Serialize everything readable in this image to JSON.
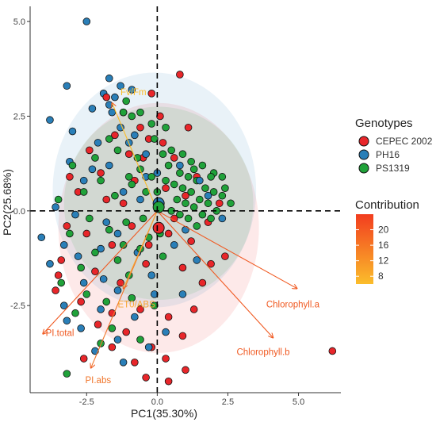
{
  "chart_data": {
    "type": "scatter",
    "subtype": "pca-biplot",
    "title": "",
    "xlabel": "PC1(35.30%)",
    "ylabel": "PC2(25.68%)",
    "xlim": [
      -4.5,
      6.5
    ],
    "ylim": [
      -4.8,
      5.4
    ],
    "xticks": [
      -2.5,
      0.0,
      2.5,
      5.0
    ],
    "xtick_labels": [
      "-2.5",
      "0.0",
      "2.5",
      "5.0"
    ],
    "yticks": [
      -2.5,
      0.0,
      2.5,
      5.0
    ],
    "ytick_labels": [
      "-2.5",
      "0.0",
      "2.5",
      "5.0"
    ],
    "grid": false,
    "zero_lines": "dashed",
    "series": [
      {
        "name": "CEPEC 2002",
        "color": "#e8262a",
        "centroid": [
          0.05,
          -0.45
        ],
        "ellipse": {
          "cx": 0.05,
          "cy": -0.45,
          "rx": 3.55,
          "ry": 3.3
        },
        "points": [
          [
            0.8,
            3.6
          ],
          [
            -1.2,
            2.6
          ],
          [
            -0.6,
            2.2
          ],
          [
            -0.3,
            1.9
          ],
          [
            -1.5,
            2.0
          ],
          [
            -1.0,
            1.5
          ],
          [
            -0.5,
            1.4
          ],
          [
            0.2,
            1.8
          ],
          [
            0.6,
            1.4
          ],
          [
            -2.0,
            1.0
          ],
          [
            -2.8,
            0.5
          ],
          [
            -1.8,
            0.3
          ],
          [
            -0.8,
            0.8
          ],
          [
            0.3,
            0.6
          ],
          [
            1.0,
            0.4
          ],
          [
            1.4,
            0.9
          ],
          [
            -3.2,
            -0.4
          ],
          [
            -2.5,
            -0.6
          ],
          [
            -1.6,
            -0.9
          ],
          [
            -0.9,
            -0.4
          ],
          [
            0.4,
            -0.6
          ],
          [
            1.2,
            -0.8
          ],
          [
            1.8,
            -0.3
          ],
          [
            2.2,
            0.2
          ],
          [
            -3.4,
            -1.3
          ],
          [
            -2.2,
            -1.6
          ],
          [
            -1.3,
            -1.9
          ],
          [
            -0.4,
            -1.4
          ],
          [
            0.9,
            -1.5
          ],
          [
            1.6,
            -1.9
          ],
          [
            2.4,
            -1.2
          ],
          [
            -3.5,
            -1.7
          ],
          [
            -2.7,
            -2.4
          ],
          [
            -1.6,
            -2.7
          ],
          [
            -0.6,
            -2.6
          ],
          [
            0.4,
            -2.8
          ],
          [
            1.3,
            -2.6
          ],
          [
            -3.6,
            -2.1
          ],
          [
            -2.1,
            -3.0
          ],
          [
            -1.1,
            -3.2
          ],
          [
            -0.2,
            -3.6
          ],
          [
            0.9,
            -3.3
          ],
          [
            -1.6,
            -3.6
          ],
          [
            -0.8,
            -4.0
          ],
          [
            -2.6,
            -3.9
          ],
          [
            0.3,
            -3.9
          ],
          [
            -0.4,
            -4.4
          ],
          [
            1.0,
            -4.2
          ],
          [
            0.4,
            -4.5
          ],
          [
            6.2,
            -3.7
          ],
          [
            -0.2,
            3.1
          ],
          [
            -1.8,
            3.0
          ],
          [
            0.1,
            2.5
          ],
          [
            1.1,
            2.2
          ],
          [
            -2.4,
            1.6
          ],
          [
            -3.1,
            0.9
          ],
          [
            -1.2,
            0.2
          ],
          [
            0.6,
            -0.2
          ],
          [
            1.9,
            -1.4
          ],
          [
            -0.3,
            -0.9
          ]
        ]
      },
      {
        "name": "PH16",
        "color": "#2a7fb8",
        "centroid": [
          0.05,
          0.2
        ],
        "ellipse": {
          "cx": -0.1,
          "cy": 0.55,
          "rx": 3.6,
          "ry": 3.1
        },
        "points": [
          [
            -2.5,
            5.0
          ],
          [
            -1.7,
            3.5
          ],
          [
            -1.3,
            3.3
          ],
          [
            -1.9,
            3.1
          ],
          [
            -1.5,
            3.0
          ],
          [
            -0.9,
            3.2
          ],
          [
            -1.7,
            2.8
          ],
          [
            -3.2,
            3.3
          ],
          [
            -1.3,
            2.2
          ],
          [
            -3.0,
            2.1
          ],
          [
            -2.3,
            2.7
          ],
          [
            -3.8,
            2.4
          ],
          [
            -1.6,
            2.6
          ],
          [
            -0.8,
            2.0
          ],
          [
            -2.1,
            1.8
          ],
          [
            -3.1,
            1.3
          ],
          [
            -0.4,
            1.5
          ],
          [
            -1.7,
            1.2
          ],
          [
            -2.6,
            0.8
          ],
          [
            0.0,
            1.0
          ],
          [
            -1.2,
            0.5
          ],
          [
            0.8,
            1.2
          ],
          [
            -2.9,
            -0.1
          ],
          [
            -1.8,
            -0.3
          ],
          [
            -0.6,
            0.3
          ],
          [
            1.5,
            0.8
          ],
          [
            -4.1,
            -0.7
          ],
          [
            -3.3,
            -0.9
          ],
          [
            -2.0,
            -1.0
          ],
          [
            -0.7,
            -1.1
          ],
          [
            1.0,
            -0.5
          ],
          [
            -3.8,
            -1.4
          ],
          [
            -2.6,
            -1.9
          ],
          [
            -1.4,
            -2.1
          ],
          [
            -0.2,
            -1.7
          ],
          [
            1.4,
            -1.3
          ],
          [
            -3.3,
            -2.5
          ],
          [
            -2.0,
            -2.6
          ],
          [
            -0.8,
            -2.8
          ],
          [
            0.3,
            -3.2
          ],
          [
            -2.7,
            -3.1
          ],
          [
            -1.4,
            -3.4
          ],
          [
            -0.3,
            -3.6
          ],
          [
            -1.2,
            -4.0
          ],
          [
            -3.2,
            -2.9
          ],
          [
            -2.2,
            -3.7
          ],
          [
            0.6,
            -0.9
          ],
          [
            -0.4,
            0.9
          ],
          [
            1.8,
            0.4
          ],
          [
            2.3,
            -0.2
          ],
          [
            -1.0,
            1.8
          ],
          [
            -2.3,
            1.1
          ],
          [
            -1.4,
            -0.6
          ],
          [
            -0.1,
            -2.2
          ],
          [
            0.9,
            -2.2
          ],
          [
            -3.6,
            0.1
          ],
          [
            -2.8,
            -1.2
          ],
          [
            -1.9,
            -1.8
          ]
        ]
      },
      {
        "name": "PS1319",
        "color": "#20a23a",
        "centroid": [
          0.05,
          0.1
        ],
        "ellipse": {
          "cx": 0.05,
          "cy": 0.2,
          "rx": 3.35,
          "ry": 2.55
        },
        "points": [
          [
            -1.1,
            2.9
          ],
          [
            -1.2,
            2.6
          ],
          [
            -0.9,
            2.5
          ],
          [
            -0.6,
            2.6
          ],
          [
            -0.2,
            2.3
          ],
          [
            0.3,
            2.2
          ],
          [
            -0.1,
            1.9
          ],
          [
            -1.7,
            1.9
          ],
          [
            -2.2,
            1.4
          ],
          [
            -1.4,
            1.6
          ],
          [
            -0.7,
            1.4
          ],
          [
            0.2,
            1.5
          ],
          [
            0.5,
            1.6
          ],
          [
            0.9,
            1.5
          ],
          [
            1.2,
            1.3
          ],
          [
            1.6,
            1.2
          ],
          [
            2.0,
            1.0
          ],
          [
            2.3,
            0.9
          ],
          [
            0.4,
            1.2
          ],
          [
            0.8,
            1.0
          ],
          [
            1.1,
            0.9
          ],
          [
            1.4,
            0.8
          ],
          [
            1.7,
            0.6
          ],
          [
            2.0,
            0.5
          ],
          [
            2.3,
            0.4
          ],
          [
            2.6,
            0.2
          ],
          [
            0.6,
            0.7
          ],
          [
            0.9,
            0.6
          ],
          [
            1.2,
            0.5
          ],
          [
            1.5,
            0.3
          ],
          [
            1.8,
            0.2
          ],
          [
            2.1,
            0.0
          ],
          [
            0.7,
            0.3
          ],
          [
            1.0,
            0.2
          ],
          [
            1.3,
            0.1
          ],
          [
            1.6,
            -0.1
          ],
          [
            1.9,
            -0.2
          ],
          [
            0.5,
            0.0
          ],
          [
            0.8,
            -0.1
          ],
          [
            1.1,
            -0.2
          ],
          [
            1.4,
            -0.4
          ],
          [
            -3.0,
            1.2
          ],
          [
            -2.6,
            0.5
          ],
          [
            -2.0,
            0.8
          ],
          [
            -1.5,
            0.4
          ],
          [
            -0.9,
            0.7
          ],
          [
            -0.4,
            0.5
          ],
          [
            -3.5,
            0.3
          ],
          [
            -2.4,
            -0.2
          ],
          [
            -1.7,
            -0.5
          ],
          [
            -1.1,
            -0.3
          ],
          [
            -0.5,
            -0.2
          ],
          [
            -3.1,
            -0.6
          ],
          [
            -2.2,
            -1.1
          ],
          [
            -1.4,
            -1.3
          ],
          [
            -0.6,
            -1.0
          ],
          [
            0.2,
            -1.2
          ],
          [
            -3.4,
            -1.9
          ],
          [
            -2.5,
            -2.2
          ],
          [
            -1.8,
            -2.4
          ],
          [
            -0.9,
            -2.3
          ],
          [
            -0.1,
            -2.5
          ],
          [
            -2.9,
            -2.7
          ],
          [
            -1.6,
            -3.1
          ],
          [
            -0.6,
            -3.4
          ],
          [
            -2.0,
            -3.5
          ],
          [
            -3.2,
            -4.3
          ],
          [
            0.0,
            0.5
          ],
          [
            -0.2,
            0.9
          ],
          [
            0.3,
            0.8
          ],
          [
            -0.6,
            1.1
          ],
          [
            -1.0,
            0.9
          ],
          [
            1.9,
            0.9
          ],
          [
            2.4,
            0.6
          ],
          [
            1.3,
            1.1
          ],
          [
            0.1,
            -0.6
          ],
          [
            -0.3,
            -0.7
          ],
          [
            -1.2,
            -0.9
          ],
          [
            -2.7,
            -1.5
          ],
          [
            -1.0,
            -1.7
          ]
        ]
      }
    ],
    "loadings": [
      {
        "label": "Chlorophyll.a",
        "end": [
          4.95,
          -2.05
        ],
        "label_pos": [
          4.8,
          -2.55
        ],
        "color": "#f05a22"
      },
      {
        "label": "Chlorophyll.b",
        "end": [
          4.1,
          -3.35
        ],
        "label_pos": [
          3.75,
          -3.8
        ],
        "color": "#f05a22"
      },
      {
        "label": "PI.total",
        "end": [
          -4.05,
          -3.25
        ],
        "label_pos": [
          -3.95,
          -3.3
        ],
        "color": "#f05a22"
      },
      {
        "label": "PI.abs",
        "end": [
          -2.35,
          -4.15
        ],
        "label_pos": [
          -2.55,
          -4.55
        ],
        "color": "#f0752a"
      },
      {
        "label": "ET0/ABS",
        "end": [
          -1.2,
          -2.05
        ],
        "label_pos": [
          -1.4,
          -2.55
        ],
        "color": "#f8a632"
      },
      {
        "label": "Fv/Fm",
        "end": [
          -1.6,
          2.85
        ],
        "label_pos": [
          -1.3,
          3.05
        ],
        "color": "#fbbd2b"
      }
    ],
    "legend": {
      "placement": "right",
      "genotypes_title": "Genotypes",
      "contribution_title": "Contribution",
      "contribution_ticks": [
        "20",
        "16",
        "12",
        "8"
      ],
      "contribution_range": [
        6,
        24
      ],
      "gradient_colors": [
        "#f23d1f",
        "#fbbd2b"
      ]
    }
  }
}
